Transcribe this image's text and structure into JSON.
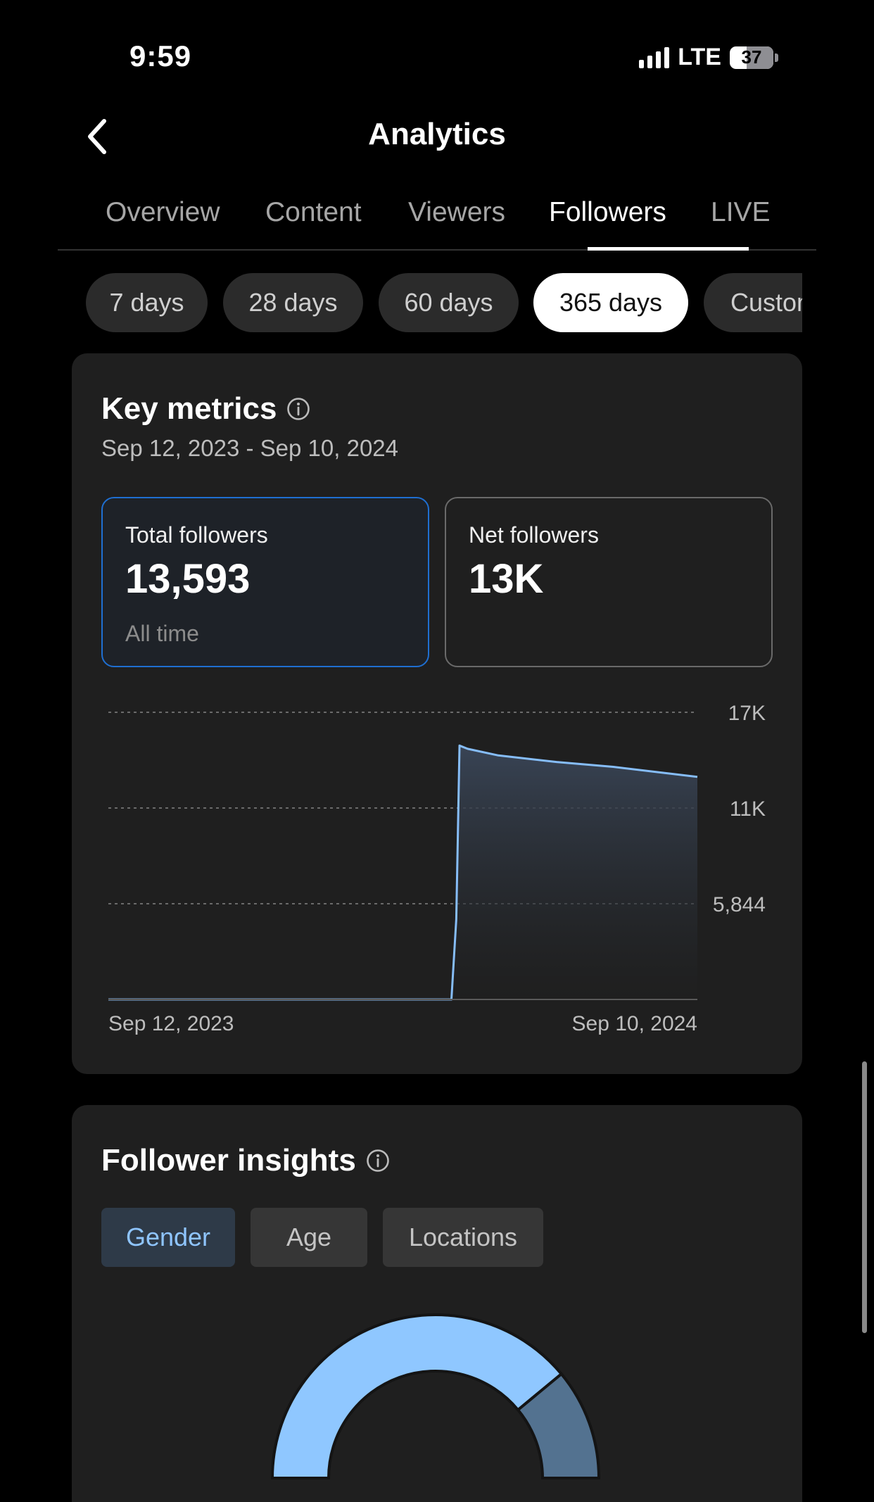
{
  "status_bar": {
    "time": "9:59",
    "network": "LTE",
    "battery": "37"
  },
  "header": {
    "title": "Analytics"
  },
  "tabs": [
    {
      "label": "Overview"
    },
    {
      "label": "Content"
    },
    {
      "label": "Viewers"
    },
    {
      "label": "Followers"
    },
    {
      "label": "LIVE"
    }
  ],
  "active_tab": "Followers",
  "periods": [
    {
      "label": "7 days"
    },
    {
      "label": "28 days"
    },
    {
      "label": "60 days"
    },
    {
      "label": "365 days"
    },
    {
      "label": "Custom"
    }
  ],
  "active_period": "365 days",
  "key_metrics": {
    "title": "Key metrics",
    "date_range": "Sep 12, 2023 - Sep 10, 2024",
    "total": {
      "label": "Total followers",
      "value": "13,593",
      "sub": "All time"
    },
    "net": {
      "label": "Net followers",
      "value": "13K"
    }
  },
  "chart_data": {
    "type": "area",
    "x_start_label": "Sep 12, 2023",
    "x_end_label": "Sep 10, 2024",
    "x_range": [
      "2023-09-12",
      "2024-09-10"
    ],
    "ylim": [
      0,
      17532
    ],
    "y_ticks": [
      {
        "label": "17K",
        "value": 17532
      },
      {
        "label": "11K",
        "value": 11688
      },
      {
        "label": "5,844",
        "value": 5844
      }
    ],
    "grid": true,
    "points": [
      {
        "x": "2023-09-12",
        "y": 0
      },
      {
        "x": "2024-04-11",
        "y": 0
      },
      {
        "x": "2024-04-14",
        "y": 4900
      },
      {
        "x": "2024-04-16",
        "y": 15500
      },
      {
        "x": "2024-04-21",
        "y": 15300
      },
      {
        "x": "2024-05-10",
        "y": 14900
      },
      {
        "x": "2024-06-15",
        "y": 14500
      },
      {
        "x": "2024-07-20",
        "y": 14200
      },
      {
        "x": "2024-09-10",
        "y": 13593
      }
    ],
    "line_color": "#86bdf8"
  },
  "insights": {
    "title": "Follower insights",
    "tabs": [
      {
        "label": "Gender"
      },
      {
        "label": "Age"
      },
      {
        "label": "Locations"
      }
    ],
    "active": "Gender",
    "donut": [
      {
        "share": 0.78,
        "color": "#8fc7ff"
      },
      {
        "share": 0.22,
        "color": "#537290"
      }
    ]
  },
  "colors": {
    "accent": "#1f6fd1",
    "card_bg": "#1f1f1f",
    "page_bg": "#000000"
  }
}
